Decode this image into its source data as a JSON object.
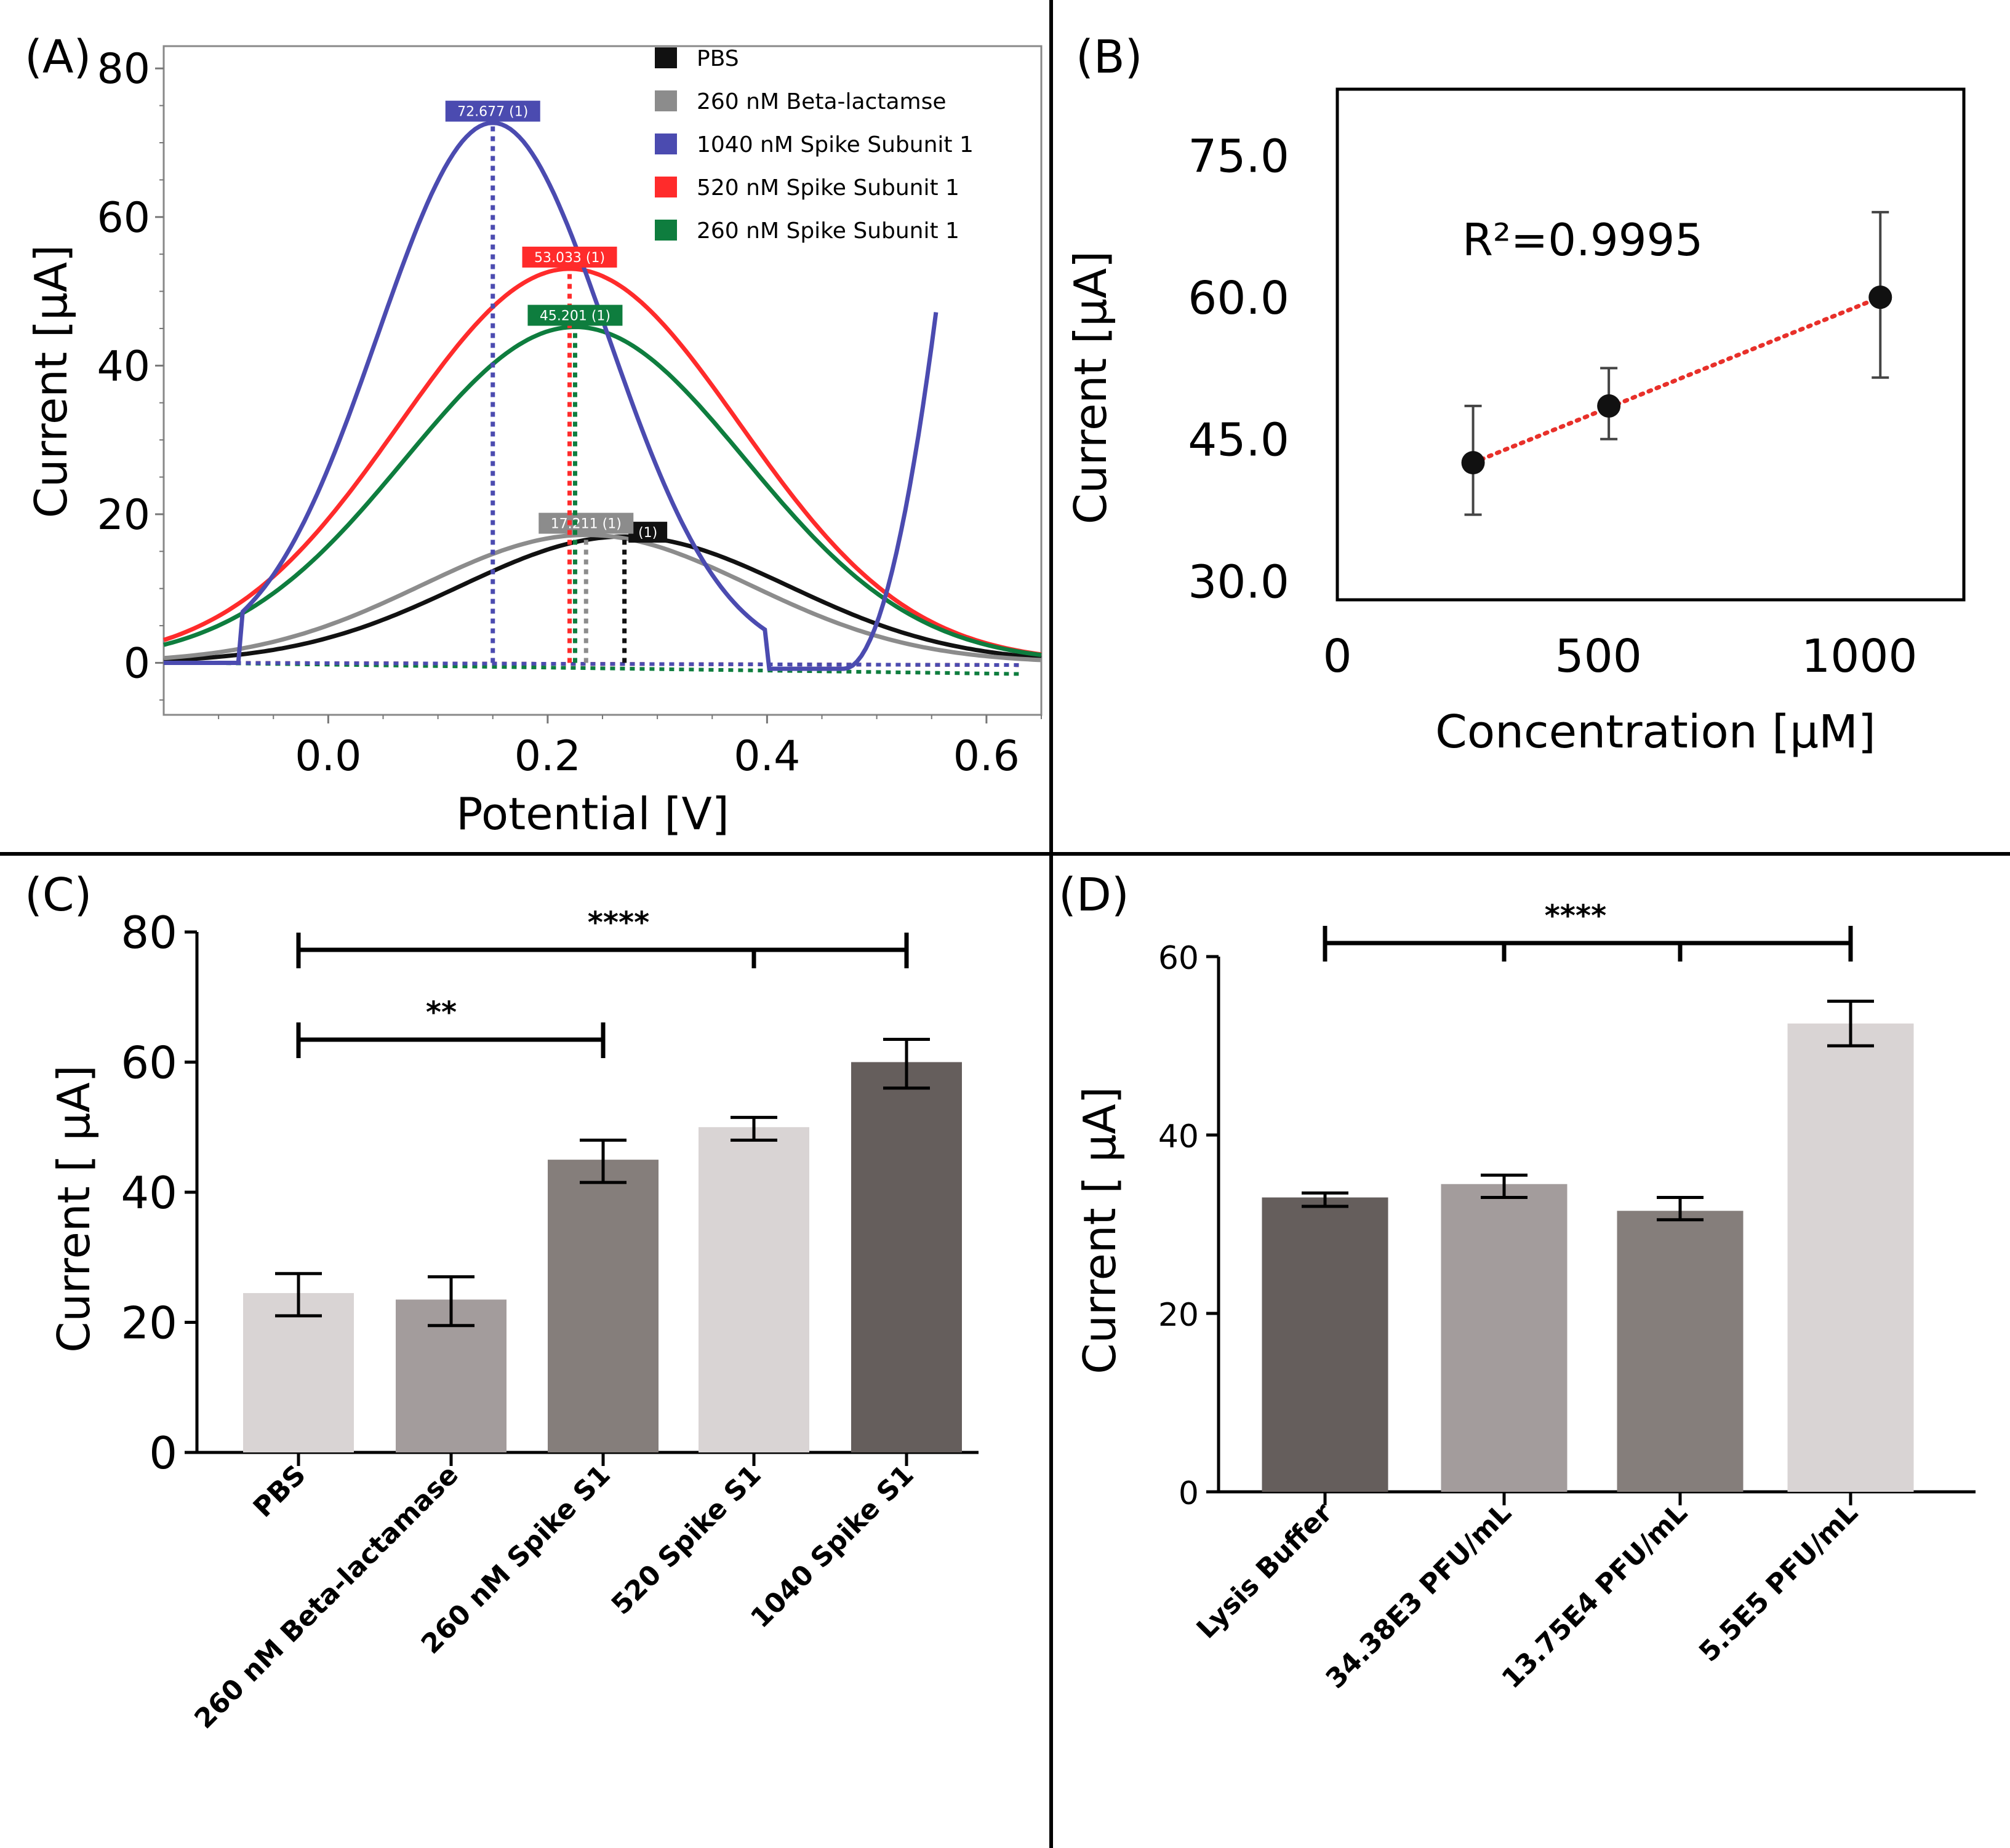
{
  "colors": {
    "pbs": "#111111",
    "beta": "#8c8c8c",
    "spike1040": "#4b4bb0",
    "spike520": "#ff2b2b",
    "spike260": "#0e7d3e",
    "fit": "#e8302a",
    "barLight": "#d9d4d4",
    "barMid": "#a39c9c",
    "barDark": "#857e7b",
    "barDarkest": "#655e5c"
  },
  "chart_data": [
    {
      "panel": "(A)",
      "type": "line",
      "xlabel": "Potential [V]",
      "ylabel": "Current [μA]",
      "xlim": [
        -0.15,
        0.65
      ],
      "ylim": [
        -7,
        83
      ],
      "xticks": [
        "0.0",
        "0.2",
        "0.4",
        "0.6"
      ],
      "yticks": [
        "0",
        "20",
        "40",
        "60",
        "80"
      ],
      "legend": [
        "PBS",
        "260 nM Beta-lactamse",
        "1040 nM Spike Subunit 1",
        "520 nM Spike Subunit 1",
        "260 nM Spike Subunit 1"
      ],
      "series": [
        {
          "name": "PBS",
          "color_key": "pbs",
          "peak_x": 0.27,
          "peak_y": 17,
          "sigma": 0.15,
          "peak_label": "(1)"
        },
        {
          "name": "260 nM Beta-lactamse",
          "color_key": "beta",
          "peak_x": 0.235,
          "peak_y": 17.211,
          "sigma": 0.15,
          "peak_label": "17.211 (1)"
        },
        {
          "name": "520 nM Spike Subunit 1",
          "color_key": "spike520",
          "peak_x": 0.22,
          "peak_y": 53.033,
          "sigma": 0.155,
          "peak_label": "53.033 (1)"
        },
        {
          "name": "260 nM Spike Subunit 1",
          "color_key": "spike260",
          "peak_x": 0.225,
          "peak_y": 45.201,
          "sigma": 0.155,
          "peak_label": "45.201 (1)"
        },
        {
          "name": "1040 nM Spike Subunit 1",
          "color_key": "spike1040",
          "peak_x": 0.15,
          "peak_y": 72.677,
          "sigma": 0.105,
          "peak_label": "72.677 (1)"
        }
      ]
    },
    {
      "panel": "(B)",
      "type": "scatter",
      "xlabel": "Concentration [μM]",
      "ylabel": "Current [μA]",
      "xlim": [
        0,
        1200
      ],
      "ylim": [
        28,
        82
      ],
      "xticks": [
        "0",
        "500",
        "1000"
      ],
      "yticks": [
        "30.0",
        "45.0",
        "60.0",
        "75.0"
      ],
      "annotation": "R²=0.9995",
      "x": [
        260,
        520,
        1040
      ],
      "y": [
        42.5,
        48.5,
        60.0
      ],
      "err_low": [
        37,
        45,
        51.5
      ],
      "err_high": [
        48.5,
        52.5,
        69
      ]
    },
    {
      "panel": "(C)",
      "type": "bar",
      "ylabel": "Current [ μA]",
      "ylim": [
        0,
        80
      ],
      "yticks": [
        "0",
        "20",
        "40",
        "60",
        "80"
      ],
      "categories": [
        "PBS",
        "260 nM Beta-lactamase",
        "260 nM Spike S1",
        "520 Spike S1",
        "1040 Spike S1"
      ],
      "values": [
        24.5,
        23.5,
        45,
        50,
        60
      ],
      "err_low": [
        21,
        19.5,
        41.5,
        48,
        56
      ],
      "err_high": [
        27.5,
        27,
        48,
        51.5,
        63.5
      ],
      "significance": [
        "**",
        "****"
      ]
    },
    {
      "panel": "(D)",
      "type": "bar",
      "ylabel": "Current [ μA]",
      "ylim": [
        0,
        60
      ],
      "yticks": [
        "0",
        "20",
        "40",
        "60"
      ],
      "categories": [
        "Lysis Buffer",
        "34.38E3 PFU/mL",
        "13.75E4 PFU/mL",
        "5.5E5 PFU/mL"
      ],
      "values": [
        33,
        34.5,
        31.5,
        52.5
      ],
      "err_low": [
        32,
        33,
        30.5,
        50
      ],
      "err_high": [
        33.5,
        35.5,
        33,
        55
      ],
      "significance": [
        "****"
      ]
    }
  ]
}
